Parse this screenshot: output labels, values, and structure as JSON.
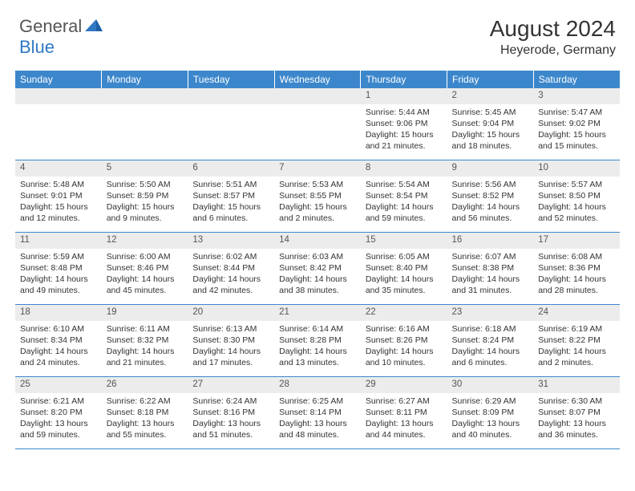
{
  "logo": {
    "text1": "General",
    "text2": "Blue"
  },
  "title": "August 2024",
  "location": "Heyerode, Germany",
  "colors": {
    "header_bg": "#3c87cc",
    "header_fg": "#ffffff",
    "daynum_bg": "#ececec",
    "divider": "#3c87cc",
    "text": "#333333",
    "logo_gray": "#565656",
    "logo_blue": "#2f78c4"
  },
  "day_headers": [
    "Sunday",
    "Monday",
    "Tuesday",
    "Wednesday",
    "Thursday",
    "Friday",
    "Saturday"
  ],
  "weeks": [
    {
      "nums": [
        "",
        "",
        "",
        "",
        "1",
        "2",
        "3"
      ],
      "cells": [
        {
          "sunrise": "",
          "sunset": "",
          "daylight": ""
        },
        {
          "sunrise": "",
          "sunset": "",
          "daylight": ""
        },
        {
          "sunrise": "",
          "sunset": "",
          "daylight": ""
        },
        {
          "sunrise": "",
          "sunset": "",
          "daylight": ""
        },
        {
          "sunrise": "Sunrise: 5:44 AM",
          "sunset": "Sunset: 9:06 PM",
          "daylight": "Daylight: 15 hours and 21 minutes."
        },
        {
          "sunrise": "Sunrise: 5:45 AM",
          "sunset": "Sunset: 9:04 PM",
          "daylight": "Daylight: 15 hours and 18 minutes."
        },
        {
          "sunrise": "Sunrise: 5:47 AM",
          "sunset": "Sunset: 9:02 PM",
          "daylight": "Daylight: 15 hours and 15 minutes."
        }
      ]
    },
    {
      "nums": [
        "4",
        "5",
        "6",
        "7",
        "8",
        "9",
        "10"
      ],
      "cells": [
        {
          "sunrise": "Sunrise: 5:48 AM",
          "sunset": "Sunset: 9:01 PM",
          "daylight": "Daylight: 15 hours and 12 minutes."
        },
        {
          "sunrise": "Sunrise: 5:50 AM",
          "sunset": "Sunset: 8:59 PM",
          "daylight": "Daylight: 15 hours and 9 minutes."
        },
        {
          "sunrise": "Sunrise: 5:51 AM",
          "sunset": "Sunset: 8:57 PM",
          "daylight": "Daylight: 15 hours and 6 minutes."
        },
        {
          "sunrise": "Sunrise: 5:53 AM",
          "sunset": "Sunset: 8:55 PM",
          "daylight": "Daylight: 15 hours and 2 minutes."
        },
        {
          "sunrise": "Sunrise: 5:54 AM",
          "sunset": "Sunset: 8:54 PM",
          "daylight": "Daylight: 14 hours and 59 minutes."
        },
        {
          "sunrise": "Sunrise: 5:56 AM",
          "sunset": "Sunset: 8:52 PM",
          "daylight": "Daylight: 14 hours and 56 minutes."
        },
        {
          "sunrise": "Sunrise: 5:57 AM",
          "sunset": "Sunset: 8:50 PM",
          "daylight": "Daylight: 14 hours and 52 minutes."
        }
      ]
    },
    {
      "nums": [
        "11",
        "12",
        "13",
        "14",
        "15",
        "16",
        "17"
      ],
      "cells": [
        {
          "sunrise": "Sunrise: 5:59 AM",
          "sunset": "Sunset: 8:48 PM",
          "daylight": "Daylight: 14 hours and 49 minutes."
        },
        {
          "sunrise": "Sunrise: 6:00 AM",
          "sunset": "Sunset: 8:46 PM",
          "daylight": "Daylight: 14 hours and 45 minutes."
        },
        {
          "sunrise": "Sunrise: 6:02 AM",
          "sunset": "Sunset: 8:44 PM",
          "daylight": "Daylight: 14 hours and 42 minutes."
        },
        {
          "sunrise": "Sunrise: 6:03 AM",
          "sunset": "Sunset: 8:42 PM",
          "daylight": "Daylight: 14 hours and 38 minutes."
        },
        {
          "sunrise": "Sunrise: 6:05 AM",
          "sunset": "Sunset: 8:40 PM",
          "daylight": "Daylight: 14 hours and 35 minutes."
        },
        {
          "sunrise": "Sunrise: 6:07 AM",
          "sunset": "Sunset: 8:38 PM",
          "daylight": "Daylight: 14 hours and 31 minutes."
        },
        {
          "sunrise": "Sunrise: 6:08 AM",
          "sunset": "Sunset: 8:36 PM",
          "daylight": "Daylight: 14 hours and 28 minutes."
        }
      ]
    },
    {
      "nums": [
        "18",
        "19",
        "20",
        "21",
        "22",
        "23",
        "24"
      ],
      "cells": [
        {
          "sunrise": "Sunrise: 6:10 AM",
          "sunset": "Sunset: 8:34 PM",
          "daylight": "Daylight: 14 hours and 24 minutes."
        },
        {
          "sunrise": "Sunrise: 6:11 AM",
          "sunset": "Sunset: 8:32 PM",
          "daylight": "Daylight: 14 hours and 21 minutes."
        },
        {
          "sunrise": "Sunrise: 6:13 AM",
          "sunset": "Sunset: 8:30 PM",
          "daylight": "Daylight: 14 hours and 17 minutes."
        },
        {
          "sunrise": "Sunrise: 6:14 AM",
          "sunset": "Sunset: 8:28 PM",
          "daylight": "Daylight: 14 hours and 13 minutes."
        },
        {
          "sunrise": "Sunrise: 6:16 AM",
          "sunset": "Sunset: 8:26 PM",
          "daylight": "Daylight: 14 hours and 10 minutes."
        },
        {
          "sunrise": "Sunrise: 6:18 AM",
          "sunset": "Sunset: 8:24 PM",
          "daylight": "Daylight: 14 hours and 6 minutes."
        },
        {
          "sunrise": "Sunrise: 6:19 AM",
          "sunset": "Sunset: 8:22 PM",
          "daylight": "Daylight: 14 hours and 2 minutes."
        }
      ]
    },
    {
      "nums": [
        "25",
        "26",
        "27",
        "28",
        "29",
        "30",
        "31"
      ],
      "cells": [
        {
          "sunrise": "Sunrise: 6:21 AM",
          "sunset": "Sunset: 8:20 PM",
          "daylight": "Daylight: 13 hours and 59 minutes."
        },
        {
          "sunrise": "Sunrise: 6:22 AM",
          "sunset": "Sunset: 8:18 PM",
          "daylight": "Daylight: 13 hours and 55 minutes."
        },
        {
          "sunrise": "Sunrise: 6:24 AM",
          "sunset": "Sunset: 8:16 PM",
          "daylight": "Daylight: 13 hours and 51 minutes."
        },
        {
          "sunrise": "Sunrise: 6:25 AM",
          "sunset": "Sunset: 8:14 PM",
          "daylight": "Daylight: 13 hours and 48 minutes."
        },
        {
          "sunrise": "Sunrise: 6:27 AM",
          "sunset": "Sunset: 8:11 PM",
          "daylight": "Daylight: 13 hours and 44 minutes."
        },
        {
          "sunrise": "Sunrise: 6:29 AM",
          "sunset": "Sunset: 8:09 PM",
          "daylight": "Daylight: 13 hours and 40 minutes."
        },
        {
          "sunrise": "Sunrise: 6:30 AM",
          "sunset": "Sunset: 8:07 PM",
          "daylight": "Daylight: 13 hours and 36 minutes."
        }
      ]
    }
  ]
}
